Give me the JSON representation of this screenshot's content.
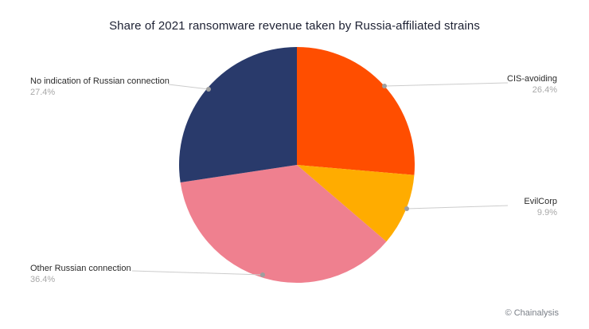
{
  "title": "Share of 2021 ransomware revenue taken by Russia-affiliated strains",
  "footer": {
    "credit": "© Chainalysis"
  },
  "chart_data": {
    "type": "pie",
    "title": "Share of 2021 ransomware revenue taken by Russia-affiliated strains",
    "start_angle_deg": 0,
    "direction": "clockwise",
    "legend": "none",
    "grid": false,
    "slices": [
      {
        "label": "CIS-avoiding",
        "value": 26.4,
        "pct_label": "26.4%",
        "color": "#FF4E00"
      },
      {
        "label": "EvilCorp",
        "value": 9.9,
        "pct_label": "9.9%",
        "color": "#FFAC00"
      },
      {
        "label": "Other Russian connection",
        "value": 36.4,
        "pct_label": "36.4%",
        "color": "#EF808F"
      },
      {
        "label": "No indication of Russian connection",
        "value": 27.4,
        "pct_label": "27.4%",
        "color": "#293A6B"
      }
    ],
    "leader_line_color": "#cccccc",
    "leader_dot_color": "#9e9e9e"
  }
}
